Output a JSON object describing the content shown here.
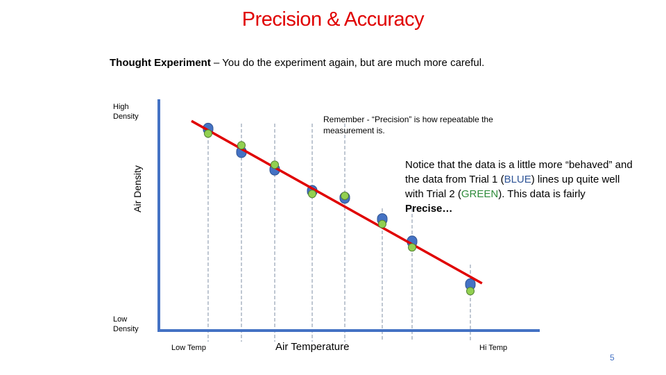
{
  "slide": {
    "title": "Precision & Accuracy",
    "subtitle_bold": "Thought Experiment",
    "subtitle_rest": " – You do the experiment again, but are much more careful.",
    "page_number": "5"
  },
  "axes": {
    "y_high": "High Density",
    "y_low": "Low Density",
    "y_label": "Air Density",
    "x_low": "Low Temp",
    "x_label": "Air Temperature",
    "x_high": "Hi Temp"
  },
  "callouts": {
    "reminder": "Remember -  “Precision” is how repeatable the measurement is.",
    "notice_1": "Notice that the data is a little more “behaved” and the data from Trial 1 (",
    "notice_blue": "BLUE",
    "notice_2": ") lines up quite well with Trial 2 (",
    "notice_green": "GREEN",
    "notice_3": "). This data is fairly ",
    "notice_bold": "Precise…"
  },
  "colors": {
    "title": "#e00000",
    "axis": "#4472c4",
    "trial1": "#4472c4",
    "trial2": "#92d050",
    "fit_line": "#e00000",
    "guide": "#7f8fa6"
  },
  "chart_data": {
    "type": "scatter",
    "series": [
      {
        "name": "Trial 1",
        "values": [
          0.945,
          0.825,
          0.735,
          0.625,
          0.59,
          0.48,
          0.365,
          0.145
        ]
      },
      {
        "name": "Trial 2",
        "values": [
          0.92,
          0.86,
          0.76,
          0.61,
          0.6,
          0.455,
          0.335,
          0.11
        ]
      }
    ],
    "x": [
      1,
      2,
      3,
      4,
      5,
      6,
      7,
      8
    ],
    "fit_line": {
      "x0": 0.5,
      "y0": 0.985,
      "x1": 8.2,
      "y1": 0.15
    },
    "xlabel": "Air Temperature",
    "ylabel": "Air Density"
  }
}
